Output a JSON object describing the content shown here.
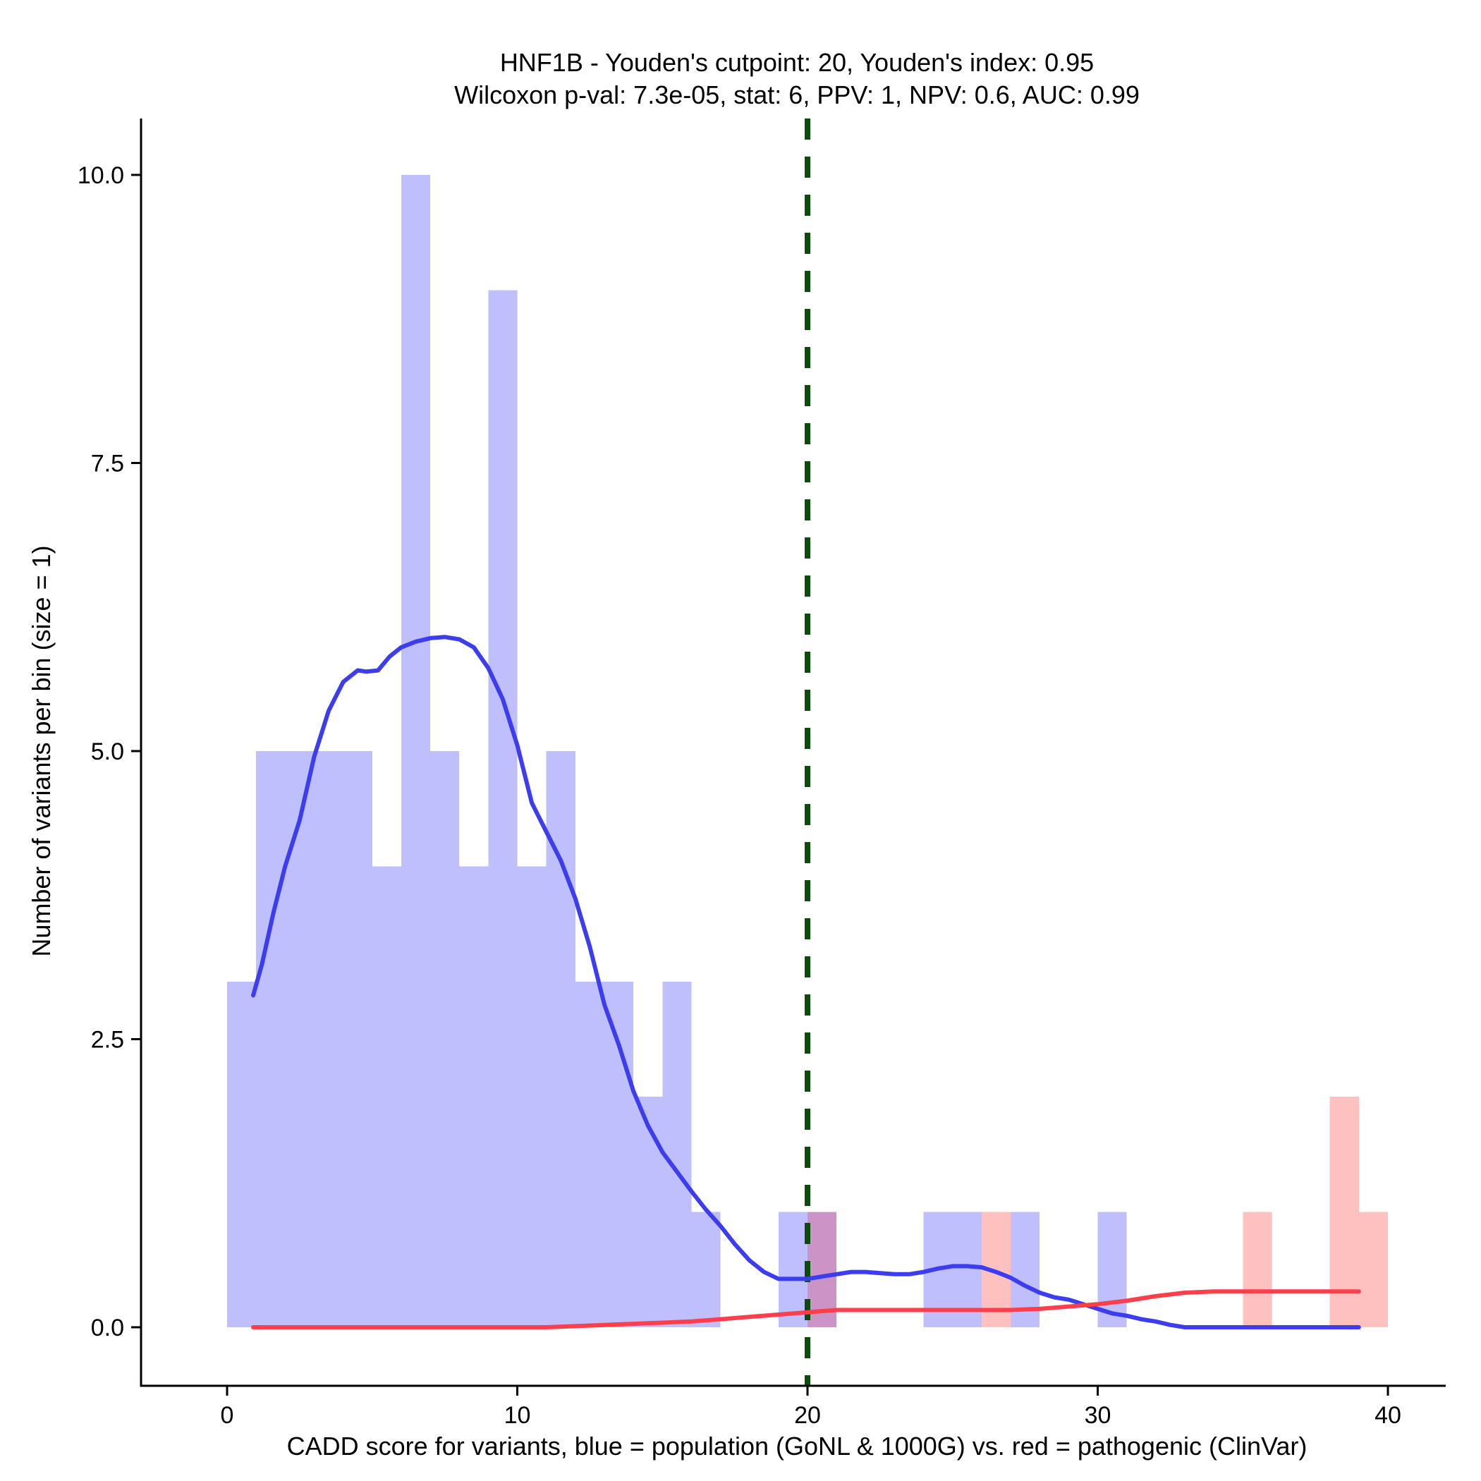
{
  "colors": {
    "population_bar": "#bfbffd",
    "pathogenic_bar": "#ffc0c0",
    "overlap_bar": "#cc93c7",
    "population_line": "#3c3cf0",
    "pathogenic_line": "#ff3e4b",
    "cutpoint_line": "#0b4b0b",
    "axis": "#000000"
  },
  "chart_data": {
    "type": "histogram",
    "title": "HNF1B - Youden's cutpoint: 20, Youden's index: 0.95",
    "subtitle": "Wilcoxon p-val: 7.3e-05, stat: 6, PPV: 1, NPV: 0.6, AUC: 0.99",
    "xlabel": "CADD score for variants, blue = population (GoNL & 1000G) vs. red = pathogenic (ClinVar)",
    "ylabel": "Number of variants per bin (size = 1)",
    "xlim": [
      -3,
      42
    ],
    "ylim": [
      -0.5,
      10.5
    ],
    "x_ticks": [
      0,
      10,
      20,
      30,
      40
    ],
    "x_tick_labels": [
      "0",
      "10",
      "20",
      "30",
      "40"
    ],
    "y_ticks": [
      0,
      2.5,
      5,
      7.5,
      10
    ],
    "y_tick_labels": [
      "0.0",
      "2.5",
      "5.0",
      "7.5",
      "10.0"
    ],
    "bin_size": 1,
    "cutpoint": 20,
    "series": [
      {
        "name": "population",
        "bins_start": [
          0,
          1,
          2,
          3,
          4,
          5,
          6,
          7,
          8,
          9,
          10,
          11,
          12,
          13,
          14,
          15,
          16,
          19,
          20,
          24,
          25,
          27,
          30
        ],
        "counts": [
          3,
          5,
          5,
          5,
          5,
          4,
          10,
          5,
          4,
          9,
          4,
          5,
          3,
          3,
          2,
          3,
          1,
          1,
          1,
          1,
          1,
          1,
          1
        ]
      },
      {
        "name": "pathogenic",
        "bins_start": [
          20,
          26,
          35,
          38,
          39
        ],
        "counts": [
          1,
          1,
          1,
          2,
          1
        ]
      }
    ],
    "density_lines": [
      {
        "name": "population",
        "x": [
          0.9,
          1.2,
          1.6,
          2.0,
          2.5,
          3.0,
          3.5,
          4.0,
          4.5,
          4.8,
          5.2,
          5.6,
          6.0,
          6.5,
          7.0,
          7.5,
          8.0,
          8.5,
          9.0,
          9.5,
          10.0,
          10.5,
          11.0,
          11.5,
          12.0,
          12.5,
          13.0,
          13.5,
          14.0,
          14.5,
          15.0,
          15.5,
          16.0,
          16.5,
          17.0,
          17.5,
          18.0,
          18.5,
          19.0,
          19.5,
          20.0,
          20.5,
          21.0,
          21.5,
          22.0,
          22.5,
          23.0,
          23.5,
          24.0,
          24.5,
          25.0,
          25.5,
          26.0,
          26.5,
          27.0,
          27.5,
          28.0,
          28.5,
          29.0,
          29.5,
          30.0,
          30.5,
          31.0,
          31.5,
          32.0,
          32.5,
          33.0,
          33.5,
          34.0,
          34.5,
          35.0,
          35.5,
          36.0,
          36.5,
          37.0,
          37.5,
          38.0,
          38.5,
          39.0
        ],
        "y": [
          2.88,
          3.15,
          3.6,
          4.0,
          4.4,
          4.95,
          5.35,
          5.6,
          5.7,
          5.69,
          5.7,
          5.82,
          5.9,
          5.95,
          5.98,
          5.99,
          5.97,
          5.9,
          5.72,
          5.45,
          5.05,
          4.55,
          4.3,
          4.05,
          3.72,
          3.3,
          2.8,
          2.45,
          2.05,
          1.75,
          1.52,
          1.35,
          1.18,
          1.02,
          0.88,
          0.72,
          0.58,
          0.48,
          0.42,
          0.42,
          0.42,
          0.44,
          0.46,
          0.48,
          0.48,
          0.47,
          0.46,
          0.46,
          0.48,
          0.51,
          0.53,
          0.53,
          0.52,
          0.48,
          0.43,
          0.36,
          0.3,
          0.26,
          0.24,
          0.2,
          0.16,
          0.12,
          0.1,
          0.07,
          0.05,
          0.02,
          0.0,
          0.0,
          0.0,
          0.0,
          0.0,
          0.0,
          0.0,
          0.0,
          0.0,
          0.0,
          0.0,
          0.0,
          0.0
        ]
      },
      {
        "name": "pathogenic",
        "x": [
          0.9,
          5,
          10,
          11,
          12,
          13,
          14,
          15,
          16,
          17,
          18,
          19,
          20,
          21,
          22,
          23,
          24,
          25,
          26,
          27,
          28,
          29,
          30,
          31,
          32,
          33,
          34,
          35,
          36,
          37,
          38,
          39
        ],
        "y": [
          0.0,
          0.0,
          0.0,
          0.0,
          0.01,
          0.02,
          0.03,
          0.04,
          0.05,
          0.07,
          0.09,
          0.11,
          0.13,
          0.15,
          0.15,
          0.15,
          0.15,
          0.15,
          0.15,
          0.15,
          0.16,
          0.18,
          0.2,
          0.23,
          0.27,
          0.3,
          0.31,
          0.31,
          0.31,
          0.31,
          0.31,
          0.31
        ]
      }
    ]
  }
}
